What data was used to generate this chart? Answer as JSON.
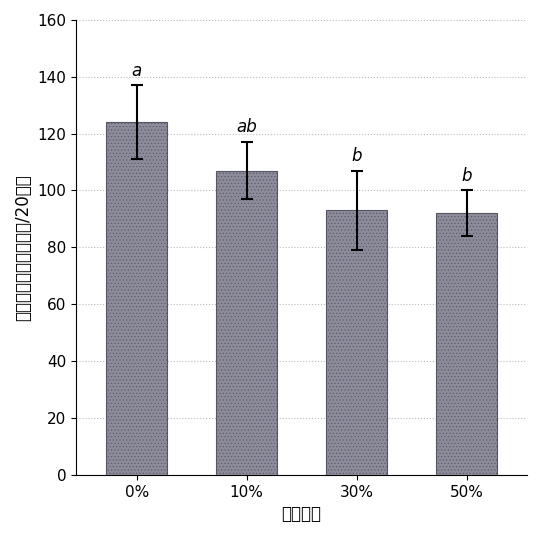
{
  "categories": [
    "0%",
    "10%",
    "30%",
    "50%"
  ],
  "values": [
    124,
    107,
    93,
    92
  ],
  "errors_upper": [
    13,
    10,
    14,
    8
  ],
  "errors_lower": [
    13,
    10,
    14,
    8
  ],
  "sig_labels": [
    "a",
    "ab",
    "b",
    "b"
  ],
  "bar_color_face": "#8b8b9a",
  "bar_hatch": ".....",
  "bar_hatch_color": "#7b5f8a",
  "bar_edgecolor": "#555566",
  "ylabel": "小菜蛾的平均数量（头/20株）",
  "xlabel": "间作比例",
  "ylim": [
    0,
    160
  ],
  "yticks": [
    0,
    20,
    40,
    60,
    80,
    100,
    120,
    140,
    160
  ],
  "grid": true,
  "grid_style": "dotted",
  "grid_color": "#bbbbbb",
  "bar_width": 0.55,
  "fig_width": 5.41,
  "fig_height": 5.37,
  "dpi": 100,
  "label_fontsize": 12,
  "tick_fontsize": 11,
  "sig_fontsize": 12,
  "capsize": 4
}
